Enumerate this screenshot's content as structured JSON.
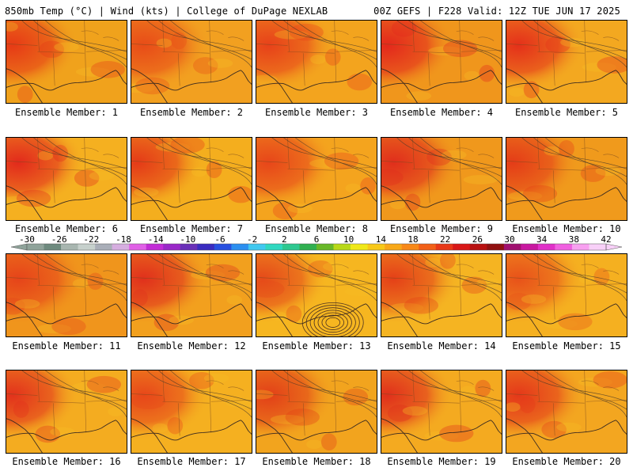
{
  "header": {
    "left_title": "850mb Temp (°C) | Wind (kts) | College of DuPage NEXLAB",
    "right_title": "00Z GEFS | F228 Valid: 12Z TUE JUN 17 2025"
  },
  "members": [
    {
      "label": "Ensemble Member: 1",
      "base": "#f0a21c",
      "hot": "#e63a16"
    },
    {
      "label": "Ensemble Member: 2",
      "base": "#f2a020",
      "hot": "#e84c18"
    },
    {
      "label": "Ensemble Member: 3",
      "base": "#f3a41e",
      "hot": "#e7411a"
    },
    {
      "label": "Ensemble Member: 4",
      "base": "#f0961c",
      "hot": "#e3281c"
    },
    {
      "label": "Ensemble Member: 5",
      "base": "#f3a820",
      "hot": "#e4301a"
    },
    {
      "label": "Ensemble Member: 6",
      "base": "#f5b020",
      "hot": "#e22a1c"
    },
    {
      "label": "Ensemble Member: 7",
      "base": "#f4ae1e",
      "hot": "#e43a18"
    },
    {
      "label": "Ensemble Member: 8",
      "base": "#f4a41e",
      "hot": "#e7461a"
    },
    {
      "label": "Ensemble Member: 9",
      "base": "#f0981c",
      "hot": "#e02e1c"
    },
    {
      "label": "Ensemble Member: 10",
      "base": "#f09a1c",
      "hot": "#e43c18"
    },
    {
      "label": "Ensemble Member: 11",
      "base": "#f0951c",
      "hot": "#e6441a"
    },
    {
      "label": "Ensemble Member: 12",
      "base": "#f2a01e",
      "hot": "#e0301c"
    },
    {
      "label": "Ensemble Member: 13",
      "base": "#f6b620",
      "hot": "#e54a1a"
    },
    {
      "label": "Ensemble Member: 14",
      "base": "#f5b422",
      "hot": "#e44018"
    },
    {
      "label": "Ensemble Member: 15",
      "base": "#f5b020",
      "hot": "#e8521a"
    },
    {
      "label": "Ensemble Member: 16",
      "base": "#f4ac20",
      "hot": "#e2321c"
    },
    {
      "label": "Ensemble Member: 17",
      "base": "#f5b020",
      "hot": "#e7481a"
    },
    {
      "label": "Ensemble Member: 18",
      "base": "#f2a41e",
      "hot": "#e24018"
    },
    {
      "label": "Ensemble Member: 19",
      "base": "#f4aa20",
      "hot": "#e0301c"
    },
    {
      "label": "Ensemble Member: 20",
      "base": "#f3a620",
      "hot": "#e4381a"
    }
  ],
  "colorbar": {
    "tick_labels": [
      "-30",
      "-26",
      "-22",
      "-18",
      "-14",
      "-10",
      "-6",
      "-2",
      "2",
      "6",
      "10",
      "14",
      "18",
      "22",
      "26",
      "30",
      "34",
      "38",
      "42"
    ],
    "colors": [
      "#8fa39a",
      "#6e8a7e",
      "#a8b6b0",
      "#c6d0cc",
      "#a9aeb8",
      "#d6aee0",
      "#e060e6",
      "#c22cd6",
      "#9a28c8",
      "#6a30b8",
      "#3a2cc0",
      "#2850e0",
      "#2c8ff0",
      "#40c8f0",
      "#30d8c0",
      "#2ec890",
      "#30b050",
      "#68b828",
      "#b8d818",
      "#f0e818",
      "#f8c818",
      "#f8a818",
      "#f88818",
      "#f26018",
      "#e83818",
      "#d81818",
      "#b81010",
      "#901010",
      "#a01070",
      "#c818a0",
      "#e030c8",
      "#f060e0",
      "#f8a0f0",
      "#f8d0f8"
    ]
  }
}
